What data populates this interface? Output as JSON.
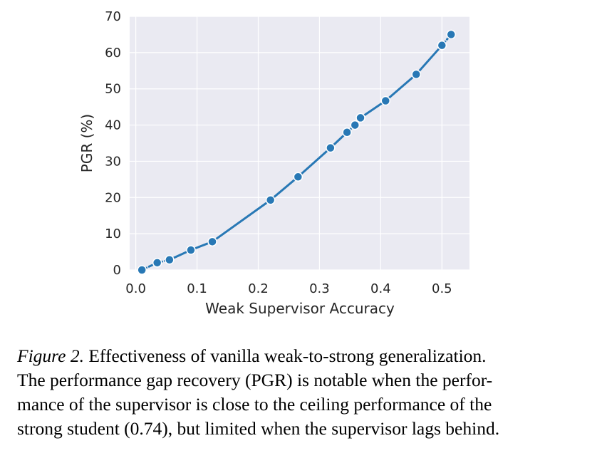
{
  "chart_data": {
    "type": "line",
    "title": "",
    "xlabel": "Weak Supervisor Accuracy",
    "ylabel": "PGR (%)",
    "xlim": [
      -0.01,
      0.545
    ],
    "ylim": [
      0,
      70
    ],
    "xticks": [
      "0.0",
      "0.1",
      "0.2",
      "0.3",
      "0.4",
      "0.5"
    ],
    "xtick_values": [
      0.0,
      0.1,
      0.2,
      0.3,
      0.4,
      0.5
    ],
    "yticks": [
      "0",
      "10",
      "20",
      "30",
      "40",
      "50",
      "60",
      "70"
    ],
    "ytick_values": [
      0,
      10,
      20,
      30,
      40,
      50,
      60,
      70
    ],
    "grid": true,
    "background_color": "#eaeaf2",
    "series": [
      {
        "color": "#2878b5",
        "marker": "circle",
        "x": [
          0.01,
          0.035,
          0.055,
          0.09,
          0.125,
          0.22,
          0.265,
          0.318,
          0.345,
          0.358,
          0.367,
          0.408,
          0.458,
          0.5,
          0.515
        ],
        "y": [
          0,
          2,
          2.8,
          5.5,
          7.8,
          19.3,
          25.7,
          33.7,
          38,
          40,
          42,
          46.7,
          54,
          62,
          65
        ],
        "dashed_ranges": [
          [
            0,
            2
          ],
          [
            13,
            14
          ]
        ]
      }
    ]
  },
  "caption": {
    "label": "Figure 2.",
    "lines": [
      "Effectiveness of vanilla weak-to-strong generalization.",
      "The performance gap recovery (PGR) is notable when the perfor-",
      "mance of the supervisor is close to the ceiling performance of the",
      "strong student (0.74), but limited when the supervisor lags behind."
    ]
  }
}
